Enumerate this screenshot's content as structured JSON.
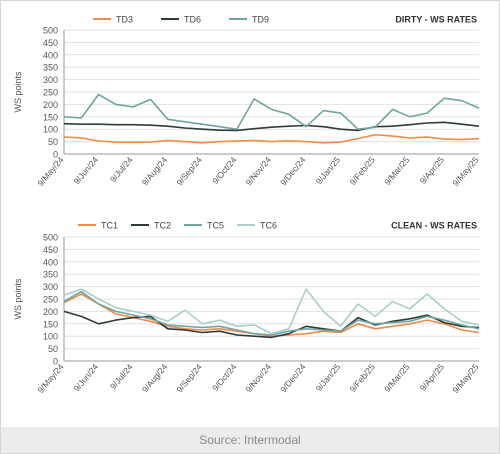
{
  "source": "Source: Intermodal",
  "chart_data": [
    {
      "type": "line",
      "title": "DIRTY - WS RATES",
      "ylabel": "WS points",
      "xlabel": "",
      "ylim": [
        0,
        500
      ],
      "yticks": [
        0,
        50,
        100,
        150,
        200,
        250,
        300,
        350,
        400,
        450,
        500
      ],
      "grid": true,
      "legend": "top-left",
      "xticks": [
        "9/May/24",
        "9/Jun/24",
        "9/Jul/24",
        "9/Aug/24",
        "9/Sep/24",
        "9/Oct/24",
        "9/Nov/24",
        "9/Dec/24",
        "9/Jan/25",
        "9/Feb/25",
        "9/Mar/25",
        "9/Apr/25",
        "9/May/25"
      ],
      "series": [
        {
          "name": "TD3",
          "color": "#f08b48",
          "x": [
            0,
            0.5,
            1,
            1.5,
            2,
            2.5,
            3,
            3.5,
            4,
            4.5,
            5,
            5.5,
            6,
            6.5,
            7,
            7.5,
            8,
            8.5,
            9,
            9.5,
            10,
            10.5,
            11,
            11.5,
            12
          ],
          "y": [
            68,
            65,
            52,
            48,
            47,
            48,
            55,
            50,
            45,
            50,
            52,
            55,
            50,
            53,
            50,
            45,
            48,
            62,
            78,
            72,
            65,
            68,
            60,
            58,
            62
          ]
        },
        {
          "name": "TD6",
          "color": "#2d3b3a",
          "x": [
            0,
            0.5,
            1,
            1.5,
            2,
            2.5,
            3,
            3.5,
            4,
            4.5,
            5,
            5.5,
            6,
            6.5,
            7,
            7.5,
            8,
            8.5,
            9,
            9.5,
            10,
            10.5,
            11,
            11.5,
            12
          ],
          "y": [
            122,
            120,
            120,
            118,
            118,
            116,
            112,
            105,
            100,
            96,
            95,
            102,
            108,
            112,
            115,
            110,
            100,
            95,
            110,
            112,
            118,
            125,
            128,
            120,
            112
          ]
        },
        {
          "name": "TD9",
          "color": "#6fa5a0",
          "x": [
            0,
            0.5,
            1,
            1.5,
            2,
            2.5,
            3,
            3.5,
            4,
            4.5,
            5,
            5.5,
            6,
            6.5,
            7,
            7.5,
            8,
            8.5,
            9,
            9.5,
            10,
            10.5,
            11,
            11.5,
            12
          ],
          "y": [
            150,
            145,
            240,
            200,
            190,
            220,
            140,
            130,
            120,
            110,
            100,
            222,
            180,
            160,
            110,
            175,
            165,
            100,
            108,
            180,
            150,
            165,
            225,
            215,
            185
          ]
        }
      ]
    },
    {
      "type": "line",
      "title": "CLEAN - WS RATES",
      "ylabel": "WS points",
      "xlabel": "",
      "ylim": [
        0,
        500
      ],
      "yticks": [
        0,
        50,
        100,
        150,
        200,
        250,
        300,
        350,
        400,
        450,
        500
      ],
      "grid": true,
      "legend": "top-left",
      "xticks": [
        "9/May/24",
        "9/Jun/24",
        "9/Jul/24",
        "9/Aug/24",
        "9/Sep/24",
        "9/Oct/24",
        "9/Nov/24",
        "9/Dec/24",
        "9/Jan/25",
        "9/Feb/25",
        "9/Mar/25",
        "9/Apr/25",
        "9/May/25"
      ],
      "series": [
        {
          "name": "TC1",
          "color": "#f08b48",
          "x": [
            0,
            0.5,
            1,
            1.5,
            2,
            2.5,
            3,
            3.5,
            4,
            4.5,
            5,
            5.5,
            6,
            6.5,
            7,
            7.5,
            8,
            8.5,
            9,
            9.5,
            10,
            10.5,
            11,
            11.5,
            12
          ],
          "y": [
            235,
            270,
            230,
            190,
            175,
            160,
            140,
            130,
            125,
            130,
            120,
            110,
            100,
            105,
            110,
            120,
            115,
            150,
            130,
            140,
            150,
            165,
            150,
            125,
            115
          ]
        },
        {
          "name": "TC2",
          "color": "#2d3b3a",
          "x": [
            0,
            0.5,
            1,
            1.5,
            2,
            2.5,
            3,
            3.5,
            4,
            4.5,
            5,
            5.5,
            6,
            6.5,
            7,
            7.5,
            8,
            8.5,
            9,
            9.5,
            10,
            10.5,
            11,
            11.5,
            12
          ],
          "y": [
            200,
            180,
            150,
            165,
            175,
            180,
            130,
            125,
            115,
            120,
            105,
            100,
            95,
            110,
            140,
            130,
            120,
            175,
            145,
            160,
            170,
            185,
            155,
            140,
            135
          ]
        },
        {
          "name": "TC5",
          "color": "#6fa5a0",
          "x": [
            0,
            0.5,
            1,
            1.5,
            2,
            2.5,
            3,
            3.5,
            4,
            4.5,
            5,
            5.5,
            6,
            6.5,
            7,
            7.5,
            8,
            8.5,
            9,
            9.5,
            10,
            10.5,
            11,
            11.5,
            12
          ],
          "y": [
            240,
            280,
            230,
            200,
            185,
            170,
            145,
            140,
            135,
            140,
            125,
            110,
            105,
            120,
            130,
            125,
            120,
            165,
            150,
            155,
            160,
            180,
            165,
            145,
            130
          ]
        },
        {
          "name": "TC6",
          "color": "#a9cfcb",
          "x": [
            0,
            0.5,
            1,
            1.5,
            2,
            2.5,
            3,
            3.5,
            4,
            4.5,
            5,
            5.5,
            6,
            6.5,
            7,
            7.5,
            8,
            8.5,
            9,
            9.5,
            10,
            10.5,
            11,
            11.5,
            12
          ],
          "y": [
            265,
            290,
            250,
            215,
            200,
            185,
            160,
            205,
            150,
            165,
            140,
            145,
            110,
            130,
            290,
            200,
            140,
            230,
            180,
            240,
            210,
            270,
            210,
            160,
            145
          ]
        }
      ]
    }
  ]
}
